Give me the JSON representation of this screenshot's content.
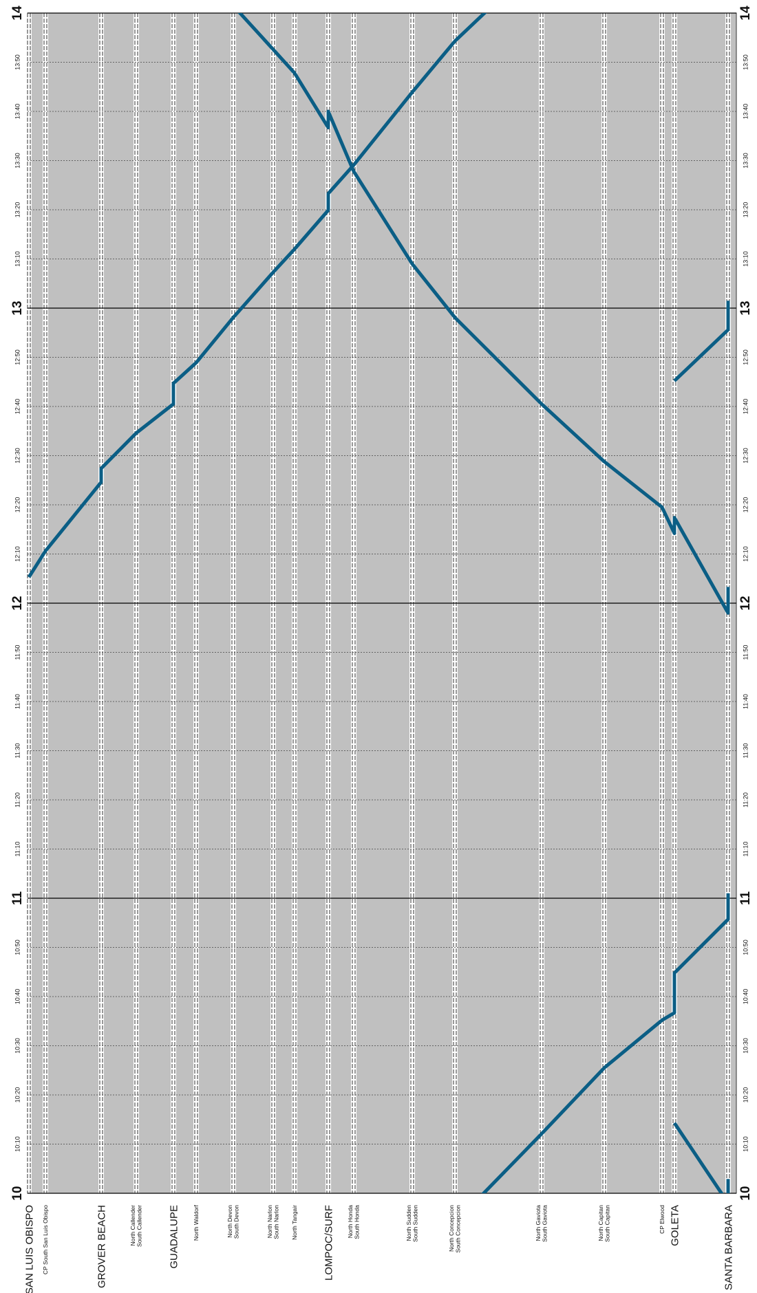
{
  "chart_data": {
    "type": "line",
    "stations": [
      {
        "lines": [
          "SAN LUIS OBISPO"
        ],
        "major": true
      },
      {
        "lines": [
          "CP South San Luis Obispo"
        ],
        "major": false
      },
      {
        "lines": [
          "GROVER BEACH"
        ],
        "major": true
      },
      {
        "lines": [
          "North Callender",
          "South Callender"
        ],
        "major": false
      },
      {
        "lines": [
          "GUADALUPE"
        ],
        "major": true
      },
      {
        "lines": [
          "North Waldorf"
        ],
        "major": false
      },
      {
        "lines": [
          "North Devon",
          "South Devon"
        ],
        "major": false
      },
      {
        "lines": [
          "North Narlon",
          "South Narlon"
        ],
        "major": false
      },
      {
        "lines": [
          "North Tangair"
        ],
        "major": false
      },
      {
        "lines": [
          "LOMPOC/SURF"
        ],
        "major": true
      },
      {
        "lines": [
          "North Honda",
          "South Honda"
        ],
        "major": false
      },
      {
        "lines": [
          "North Sudden",
          "South Sudden"
        ],
        "major": false
      },
      {
        "lines": [
          "North Concepcion",
          "South Concepcion"
        ],
        "major": false
      },
      {
        "lines": [
          "North Gaviota",
          "South Gaviota"
        ],
        "major": false
      },
      {
        "lines": [
          "North Capitan",
          "South Capitan"
        ],
        "major": false
      },
      {
        "lines": [
          "CP Elwood"
        ],
        "major": false
      },
      {
        "lines": [
          "GOLETA"
        ],
        "major": true
      },
      {
        "lines": [
          "SANTA BARBARA"
        ],
        "major": true
      }
    ],
    "ylim": [
      600,
      840
    ],
    "yticks": [
      {
        "value": 600,
        "label": "10"
      },
      {
        "value": 610,
        "label": "10:10"
      },
      {
        "value": 620,
        "label": "10:20"
      },
      {
        "value": 630,
        "label": "10:30"
      },
      {
        "value": 640,
        "label": "10:40"
      },
      {
        "value": 650,
        "label": "10:50"
      },
      {
        "value": 660,
        "label": "11"
      },
      {
        "value": 670,
        "label": "11:10"
      },
      {
        "value": 680,
        "label": "11:20"
      },
      {
        "value": 690,
        "label": "11:30"
      },
      {
        "value": 700,
        "label": "11:40"
      },
      {
        "value": 710,
        "label": "11:50"
      },
      {
        "value": 720,
        "label": "12"
      },
      {
        "value": 730,
        "label": "12:10"
      },
      {
        "value": 740,
        "label": "12:20"
      },
      {
        "value": 750,
        "label": "12:30"
      },
      {
        "value": 760,
        "label": "12:40"
      },
      {
        "value": 770,
        "label": "12:50"
      },
      {
        "value": 780,
        "label": "13"
      },
      {
        "value": 790,
        "label": "13:10"
      },
      {
        "value": 800,
        "label": "13:20"
      },
      {
        "value": 810,
        "label": "13:30"
      },
      {
        "value": 820,
        "label": "13:40"
      },
      {
        "value": 830,
        "label": "13:50"
      },
      {
        "value": 840,
        "label": "14"
      }
    ],
    "grid": true,
    "series": [
      {
        "color": "#0b5e85",
        "values": [
          725.3,
          730.6,
          [
            744.6,
            747.4
          ],
          754.6,
          [
            760.5,
            764.7
          ],
          768.9,
          778.1,
          787.3,
          792,
          [
            799.9,
            803.3
          ],
          809.1,
          823.9,
          834.3,
          851,
          null,
          null,
          null,
          null
        ]
      },
      {
        "color": "#0b5e85",
        "values": [
          null,
          null,
          null,
          null,
          null,
          null,
          null,
          null,
          null,
          null,
          null,
          null,
          594,
          612.1,
          625.5,
          635.2,
          [
            636.7,
            644.8
          ],
          [
            655.7,
            661
          ]
        ]
      },
      {
        "color": "#0b5e85",
        "values": [
          null,
          null,
          null,
          null,
          null,
          null,
          null,
          null,
          null,
          null,
          null,
          null,
          null,
          null,
          null,
          null,
          614.3,
          [
            598,
            602.9
          ]
        ]
      },
      {
        "color": "#0b5e85",
        "values": [
          null,
          null,
          null,
          null,
          null,
          null,
          841.5,
          832.6,
          827.8,
          [
            816.7,
            820
          ],
          807.8,
          789,
          778.1,
          760.5,
          748.8,
          739.5,
          [
            734.2,
            737.4
          ],
          [
            718,
            723.3
          ]
        ]
      },
      {
        "color": "#0b5e85",
        "values": [
          null,
          null,
          null,
          null,
          null,
          null,
          null,
          null,
          null,
          null,
          null,
          null,
          null,
          null,
          null,
          null,
          765.2,
          [
            775.6,
            781.5
          ]
        ]
      }
    ]
  }
}
